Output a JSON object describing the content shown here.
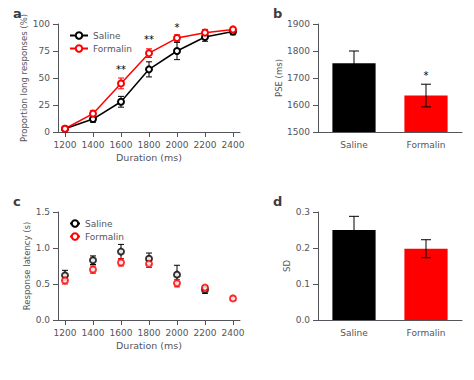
{
  "chart_data": [
    {
      "type": "line",
      "title": "a",
      "xlabel": "Duration (ms)",
      "ylabel": "Proportion long responses (%)",
      "x": [
        1200,
        1400,
        1600,
        1800,
        2000,
        2200,
        2400
      ],
      "series": [
        {
          "name": "Saline",
          "color": "#000000",
          "values": [
            3,
            12,
            28,
            58,
            75,
            88,
            93
          ],
          "errors": [
            1.5,
            3,
            5,
            7,
            8,
            4,
            3
          ]
        },
        {
          "name": "Formalin",
          "color": "#ff0000",
          "values": [
            3,
            17,
            45,
            73,
            87,
            92,
            95
          ],
          "errors": [
            1.5,
            3,
            5,
            4,
            3,
            3,
            2
          ]
        }
      ],
      "annotations": [
        {
          "x": 1600,
          "y": 52,
          "text": "**"
        },
        {
          "x": 1800,
          "y": 80,
          "text": "**"
        },
        {
          "x": 2000,
          "y": 91,
          "text": "*"
        }
      ],
      "xlim": [
        1150,
        2450
      ],
      "xticks": [
        1200,
        1400,
        1600,
        1800,
        2000,
        2200,
        2400
      ],
      "ylim": [
        0,
        100
      ],
      "yticks": [
        0,
        25,
        50,
        75,
        100
      ],
      "marker": "open_circle",
      "legend": "upper left",
      "grid": false
    },
    {
      "type": "bar",
      "title": "b",
      "ylabel": "PSE (ms)",
      "categories": [
        "Saline",
        "Formalin"
      ],
      "values": [
        1755,
        1635
      ],
      "errors": [
        45,
        42
      ],
      "colors": [
        "#000000",
        "#ff0000"
      ],
      "annotations": [
        {
          "x": "Formalin",
          "y": 1687,
          "text": "*"
        }
      ],
      "ylim": [
        1500,
        1900
      ],
      "yticks": [
        1500,
        1600,
        1700,
        1800,
        1900
      ],
      "grid": false
    },
    {
      "type": "scatter",
      "title": "c",
      "xlabel": "Duration (ms)",
      "ylabel": "Response latency (s)",
      "series": [
        {
          "name": "Saline",
          "color": "#000000",
          "x": [
            1200,
            1400,
            1600,
            1800,
            2000,
            2200
          ],
          "values": [
            0.62,
            0.83,
            0.95,
            0.85,
            0.63,
            0.42
          ],
          "errors": [
            0.07,
            0.06,
            0.1,
            0.08,
            0.13,
            0.05
          ]
        },
        {
          "name": "Formalin",
          "color": "#ff0000",
          "x": [
            1200,
            1400,
            1600,
            1800,
            2000,
            2200,
            2400
          ],
          "values": [
            0.55,
            0.7,
            0.8,
            0.78,
            0.51,
            0.45,
            0.3
          ],
          "errors": [
            0.05,
            0.05,
            0.05,
            0.05,
            0.05,
            0.03,
            0.03
          ]
        }
      ],
      "xlim": [
        1150,
        2450
      ],
      "xticks": [
        1200,
        1400,
        1600,
        1800,
        2000,
        2200,
        2400
      ],
      "ylim": [
        0,
        1.5
      ],
      "yticks": [
        {
          "value": 0,
          "label": "0.0"
        },
        0.5,
        {
          "value": 1,
          "label": "1.0"
        },
        1.5
      ],
      "marker": "open_circle",
      "legend": "upper left",
      "grid": false
    },
    {
      "type": "bar",
      "title": "d",
      "ylabel": "SD",
      "categories": [
        "Saline",
        "Formalin"
      ],
      "values": [
        0.25,
        0.198
      ],
      "errors": [
        0.038,
        0.025
      ],
      "colors": [
        "#000000",
        "#ff0000"
      ],
      "ylim": [
        0,
        0.3
      ],
      "yticks": [
        {
          "value": 0,
          "label": "0.0"
        },
        0.1,
        0.2,
        0.3
      ],
      "grid": false
    }
  ]
}
